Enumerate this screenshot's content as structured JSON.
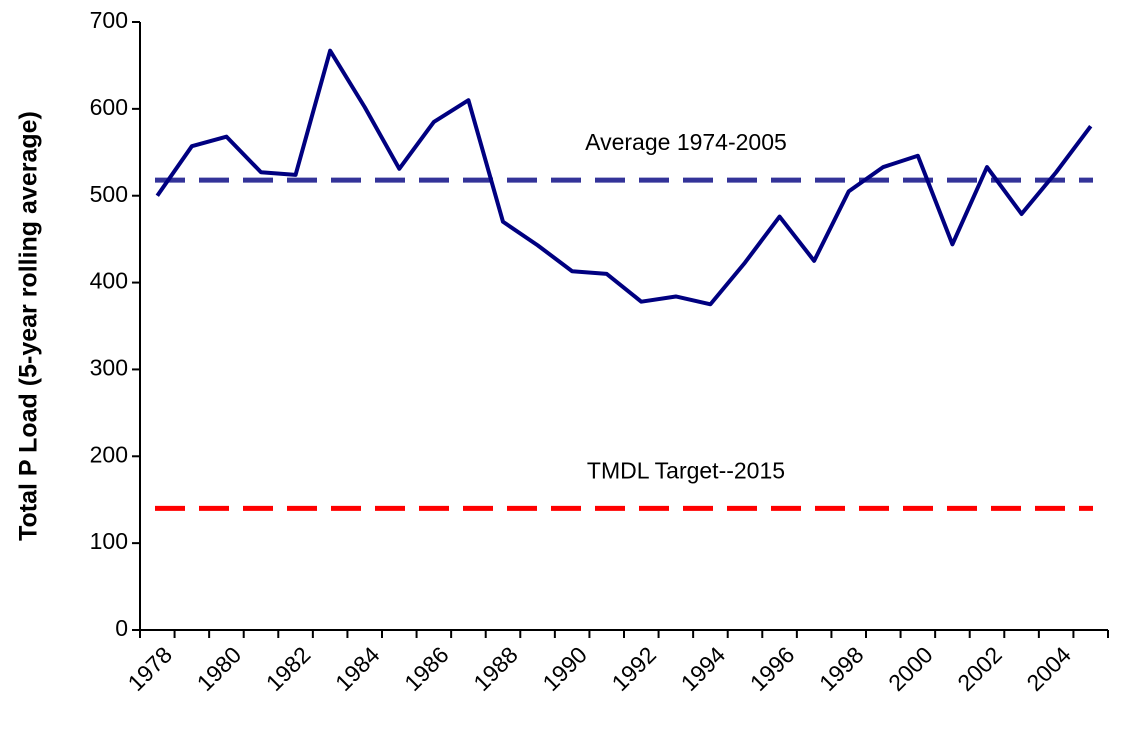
{
  "chart_data": {
    "type": "line",
    "y_label": "Total P Load (5-year rolling average)",
    "categories": [
      "1978",
      null,
      "1980",
      null,
      "1982",
      null,
      "1984",
      null,
      "1986",
      null,
      "1988",
      null,
      "1990",
      null,
      "1992",
      null,
      "1994",
      null,
      "1996",
      null,
      "1998",
      null,
      "2000",
      null,
      "2002",
      null,
      "2004",
      null
    ],
    "series": [
      {
        "name": "Total P Load",
        "color": "#000080",
        "values": [
          500,
          557,
          568,
          527,
          524,
          667,
          602,
          531,
          585,
          610,
          470,
          443,
          413,
          410,
          378,
          384,
          375,
          423,
          476,
          425,
          505,
          533,
          546,
          444,
          533,
          479,
          527,
          580
        ]
      }
    ],
    "reference_lines": [
      {
        "label": "Average 1974-2005",
        "value": 518,
        "color": "#333399"
      },
      {
        "label": "TMDL Target--2015",
        "value": 140,
        "color": "#ff0000"
      }
    ],
    "ylim": [
      0,
      700
    ],
    "yticks": [
      0,
      100,
      200,
      300,
      400,
      500,
      600,
      700
    ],
    "grid": false
  }
}
